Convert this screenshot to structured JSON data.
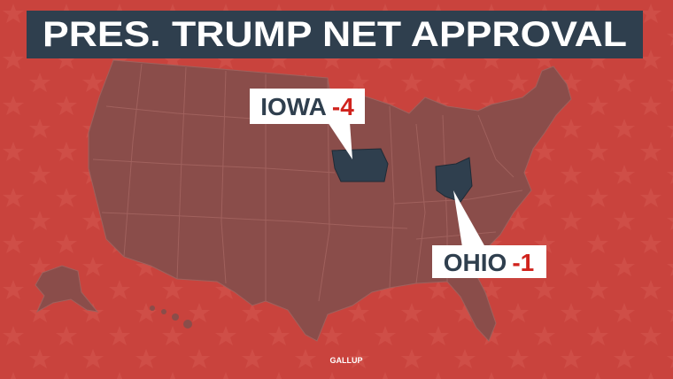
{
  "title": "PRES. TRUMP NET APPROVAL",
  "callouts": [
    {
      "state": "IOWA",
      "value": -4
    },
    {
      "state": "OHIO",
      "value": -1
    }
  ],
  "source": "GALLUP"
}
